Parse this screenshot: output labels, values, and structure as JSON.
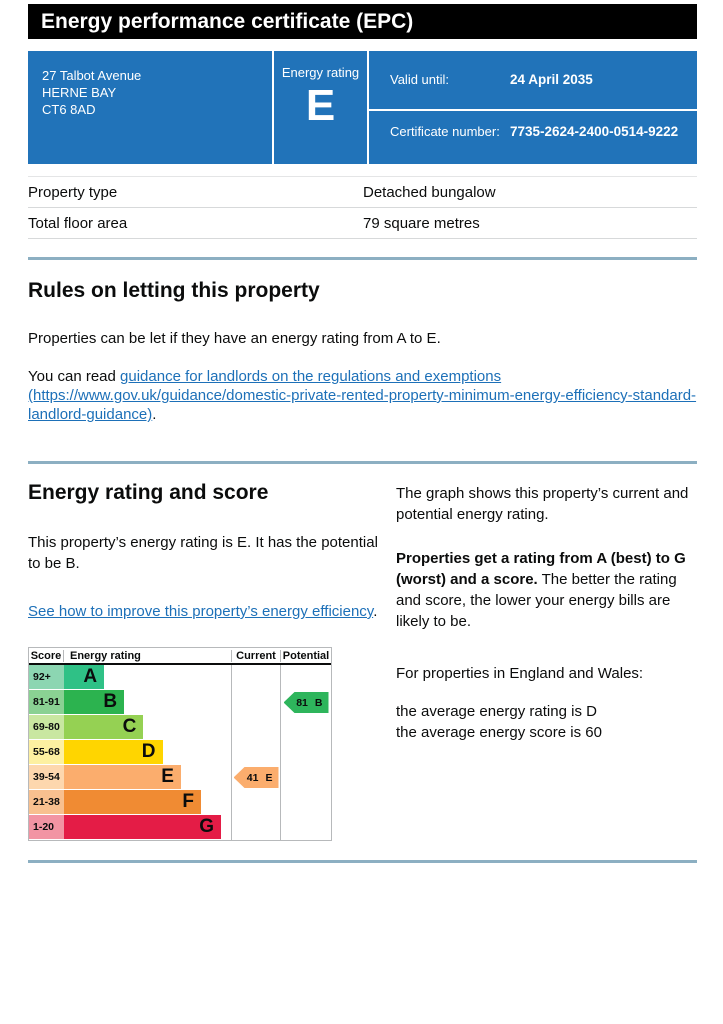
{
  "theme": {
    "gov_blue": "#2173b9",
    "link_blue": "#1d70b8",
    "divider_blue": "#8cafc2",
    "title_bar_black": "#000000",
    "text_color": "#0b0c0c"
  },
  "header": {
    "title": "Energy performance certificate (EPC)"
  },
  "summary_box": {
    "address_lines": [
      "27 Talbot Avenue",
      "HERNE BAY",
      "CT6 8AD"
    ],
    "energy_rating_label": "Energy rating",
    "energy_rating": "E",
    "valid_until_label": "Valid until:",
    "valid_until": "24 April 2035",
    "certificate_number_label": "Certificate number:",
    "certificate_number": "7735-2624-2400-0514-9222"
  },
  "property_table": {
    "rows": [
      {
        "label": "Property type",
        "value": "Detached bungalow"
      },
      {
        "label": "Total floor area",
        "value": "79 square metres"
      }
    ]
  },
  "rules_section": {
    "heading": "Rules on letting this property",
    "paragraph": "Properties can be let if they have an energy rating from A to E.",
    "read_prefix": "You can read ",
    "link_text": "guidance for landlords on the regulations and exemptions (https://www.gov.uk/guidance/domestic-private-rented-property-minimum-energy-efficiency-standard-landlord-guidance)",
    "read_suffix": "."
  },
  "rating_section": {
    "heading": "Energy rating and score",
    "intro": "This property’s energy rating is E. It has the potential to be B.",
    "improve_link": "See how to improve this property’s energy efficiency",
    "improve_suffix": ".",
    "right_column": {
      "p1": "The graph shows this property’s current and potential energy rating.",
      "p2_bold": "Properties get a rating from A (best) to G (worst) and a score.",
      "p2_rest": " The better the rating and score, the lower your energy bills are likely to be.",
      "p3": "For properties in England and Wales:",
      "p4_line1": "the average energy rating is D",
      "p4_line2": "the average energy score is 60"
    }
  },
  "chart_data": {
    "type": "epc-rating-bar",
    "title": "Energy rating and score",
    "columns": [
      "Score",
      "Energy rating",
      "Current",
      "Potential"
    ],
    "bands": [
      {
        "range": "92+",
        "letter": "A",
        "color": "#2fc186",
        "tint": "#8cd6b2",
        "bar_pct": 24
      },
      {
        "range": "81-91",
        "letter": "B",
        "color": "#2cb34f",
        "tint": "#8ad193",
        "bar_pct": 36
      },
      {
        "range": "69-80",
        "letter": "C",
        "color": "#95d153",
        "tint": "#c9e7a1",
        "bar_pct": 47.5
      },
      {
        "range": "55-68",
        "letter": "D",
        "color": "#ffd500",
        "tint": "#fdf0a1",
        "bar_pct": 59
      },
      {
        "range": "39-54",
        "letter": "E",
        "color": "#fbad6d",
        "tint": "#fdd7ae",
        "bar_pct": 70
      },
      {
        "range": "21-38",
        "letter": "F",
        "color": "#f08b33",
        "tint": "#f8c08f",
        "bar_pct": 82
      },
      {
        "range": "1-20",
        "letter": "G",
        "color": "#e41c46",
        "tint": "#f294a3",
        "bar_pct": 94
      }
    ],
    "current": {
      "score": "41",
      "band": "E",
      "color": "#fbad6d"
    },
    "potential": {
      "score": "81",
      "band": "B",
      "color": "#2eb55c"
    }
  }
}
